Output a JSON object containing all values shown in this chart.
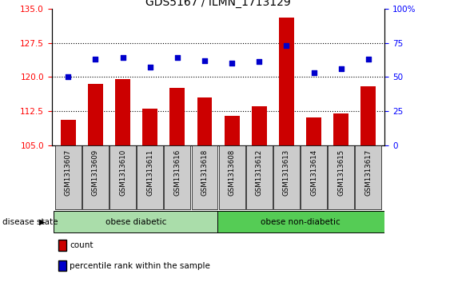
{
  "title": "GDS5167 / ILMN_1713129",
  "samples": [
    "GSM1313607",
    "GSM1313609",
    "GSM1313610",
    "GSM1313611",
    "GSM1313616",
    "GSM1313618",
    "GSM1313608",
    "GSM1313612",
    "GSM1313613",
    "GSM1313614",
    "GSM1313615",
    "GSM1313617"
  ],
  "counts": [
    110.5,
    118.5,
    119.5,
    113.0,
    117.5,
    115.5,
    111.5,
    113.5,
    133.0,
    111.0,
    112.0,
    118.0
  ],
  "percentiles": [
    50,
    63,
    64,
    57,
    64,
    62,
    60,
    61,
    73,
    53,
    56,
    63
  ],
  "ylim_left": [
    105,
    135
  ],
  "ylim_right": [
    0,
    100
  ],
  "yticks_left": [
    105,
    112.5,
    120,
    127.5,
    135
  ],
  "yticks_right": [
    0,
    25,
    50,
    75,
    100
  ],
  "bar_color": "#cc0000",
  "dot_color": "#0000cc",
  "group1_label": "obese diabetic",
  "group2_label": "obese non-diabetic",
  "group1_count": 6,
  "group2_count": 6,
  "disease_label": "disease state",
  "legend_count_label": "count",
  "legend_pct_label": "percentile rank within the sample",
  "group_bg_color1": "#aaddaa",
  "group_bg_color2": "#55cc55",
  "xticklabel_bg": "#cccccc",
  "grid_color": "black",
  "title_fontsize": 10,
  "tick_fontsize": 7.5,
  "label_fontsize": 8
}
